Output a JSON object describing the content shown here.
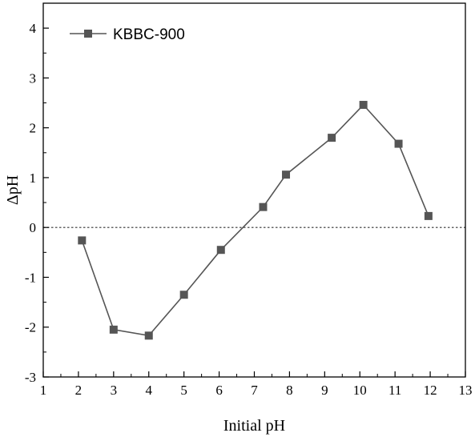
{
  "chart_data": {
    "type": "line",
    "title": "",
    "xlabel": "Initial pH",
    "ylabel": "ΔpH",
    "xlim": [
      1,
      13
    ],
    "ylim": [
      -3,
      4.5
    ],
    "xticks": [
      1,
      2,
      3,
      4,
      5,
      6,
      7,
      8,
      9,
      10,
      11,
      12,
      13
    ],
    "yticks": [
      -3,
      -2,
      -1,
      0,
      1,
      2,
      3,
      4
    ],
    "reference_line": {
      "y": 0,
      "style": "dotted"
    },
    "legend": {
      "position": "top-left"
    },
    "series": [
      {
        "name": "KBBC-900",
        "color": "#555555",
        "marker": "square",
        "x": [
          2.1,
          3.0,
          4.0,
          5.0,
          6.05,
          7.25,
          7.9,
          9.2,
          10.1,
          11.1,
          11.95
        ],
        "y": [
          -0.26,
          -2.05,
          -2.17,
          -1.35,
          -0.45,
          0.41,
          1.06,
          1.8,
          2.46,
          1.68,
          0.23
        ]
      }
    ]
  }
}
